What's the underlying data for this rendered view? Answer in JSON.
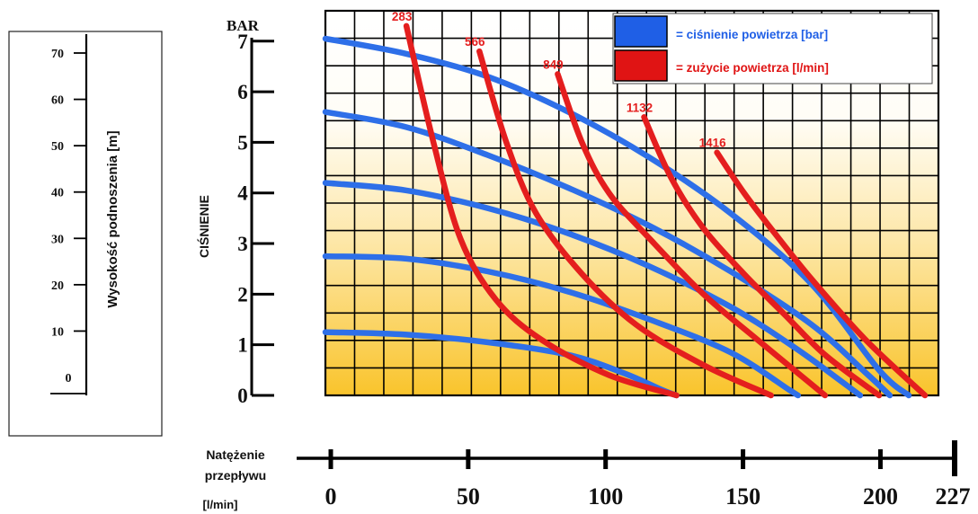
{
  "chart_data": {
    "type": "line",
    "x_axis": {
      "label_line1": "Natężenie",
      "label_line2": "przepływu",
      "label_unit": "[l/min]",
      "range": [
        0,
        227
      ],
      "ticks": [
        0,
        50,
        100,
        150,
        200,
        227
      ]
    },
    "y_axis": {
      "unit": "BAR",
      "label": "CIŚNIENIE",
      "range": [
        0,
        7.6
      ],
      "ticks": [
        0,
        1,
        2,
        3,
        4,
        5,
        6,
        7
      ]
    },
    "height_axis": {
      "label": "Wysokość podnoszenia [m]",
      "ticks": [
        0,
        10,
        20,
        30,
        40,
        50,
        60,
        70
      ]
    },
    "legend": {
      "position": "top-right",
      "entries": [
        {
          "label": "= ciśnienie powietrza  [bar]",
          "color": "#1f5fe6"
        },
        {
          "label": "= zużycie powietrza  [l/min]",
          "color": "#e01414"
        }
      ]
    },
    "pressure_color": "#2e6fe8",
    "consumption_color": "#e41e1e",
    "pressure_series": [
      {
        "points": [
          [
            0,
            7.05
          ],
          [
            30,
            6.75
          ],
          [
            60,
            6.3
          ],
          [
            90,
            5.6
          ],
          [
            120,
            4.7
          ],
          [
            150,
            3.6
          ],
          [
            180,
            2.2
          ],
          [
            205,
            0.5
          ],
          [
            216,
            0
          ]
        ]
      },
      {
        "points": [
          [
            0,
            5.6
          ],
          [
            30,
            5.3
          ],
          [
            60,
            4.75
          ],
          [
            90,
            4.1
          ],
          [
            120,
            3.35
          ],
          [
            150,
            2.45
          ],
          [
            180,
            1.4
          ],
          [
            200,
            0.45
          ],
          [
            209,
            0
          ]
        ]
      },
      {
        "points": [
          [
            0,
            4.2
          ],
          [
            30,
            4.05
          ],
          [
            60,
            3.7
          ],
          [
            90,
            3.2
          ],
          [
            120,
            2.55
          ],
          [
            150,
            1.75
          ],
          [
            175,
            0.9
          ],
          [
            198,
            0
          ]
        ]
      },
      {
        "points": [
          [
            0,
            2.75
          ],
          [
            30,
            2.7
          ],
          [
            60,
            2.45
          ],
          [
            90,
            2.05
          ],
          [
            120,
            1.5
          ],
          [
            150,
            0.85
          ],
          [
            172,
            0.1
          ],
          [
            175,
            0
          ]
        ]
      },
      {
        "points": [
          [
            0,
            1.25
          ],
          [
            30,
            1.2
          ],
          [
            60,
            1.05
          ],
          [
            90,
            0.8
          ],
          [
            110,
            0.45
          ],
          [
            125,
            0.1
          ],
          [
            130,
            0
          ]
        ]
      }
    ],
    "consumption_series": [
      {
        "label": "283",
        "points": [
          [
            30,
            7.3
          ],
          [
            40,
            5
          ],
          [
            50,
            3.1
          ],
          [
            63,
            1.9
          ],
          [
            80,
            1.1
          ],
          [
            105,
            0.4
          ],
          [
            130,
            0
          ]
        ]
      },
      {
        "label": "566",
        "points": [
          [
            57,
            6.8
          ],
          [
            67,
            5
          ],
          [
            78,
            3.6
          ],
          [
            95,
            2.4
          ],
          [
            115,
            1.4
          ],
          [
            140,
            0.6
          ],
          [
            165,
            0
          ]
        ]
      },
      {
        "label": "849",
        "points": [
          [
            86,
            6.35
          ],
          [
            95,
            5
          ],
          [
            105,
            4
          ],
          [
            120,
            3.1
          ],
          [
            140,
            2
          ],
          [
            160,
            1.1
          ],
          [
            185,
            0
          ]
        ]
      },
      {
        "label": "1132",
        "points": [
          [
            118,
            5.5
          ],
          [
            128,
            4.3
          ],
          [
            140,
            3.3
          ],
          [
            155,
            2.4
          ],
          [
            170,
            1.6
          ],
          [
            185,
            0.8
          ],
          [
            205,
            0
          ]
        ]
      },
      {
        "label": "1416",
        "points": [
          [
            145,
            4.8
          ],
          [
            155,
            4
          ],
          [
            165,
            3.3
          ],
          [
            180,
            2.3
          ],
          [
            200,
            1.1
          ],
          [
            222,
            0
          ]
        ]
      }
    ]
  }
}
